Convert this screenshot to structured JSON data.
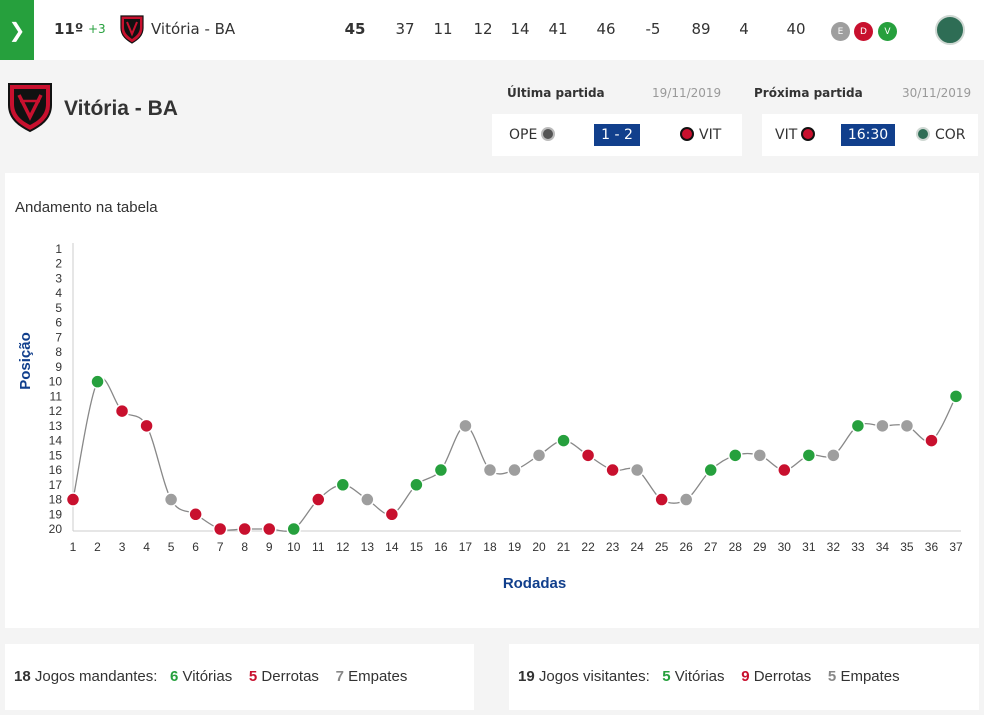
{
  "top_row": {
    "expand_icon": "chevron-right-icon",
    "position": "11º",
    "variation": "+3",
    "team": "Vitória - BA",
    "stats": [
      "45",
      "37",
      "11",
      "12",
      "14",
      "41",
      "46",
      "-5",
      "89",
      "4",
      "40"
    ],
    "form": [
      {
        "label": "E",
        "color": "#9e9e9e"
      },
      {
        "label": "D",
        "color": "#c8102e"
      },
      {
        "label": "V",
        "color": "#26a03d"
      }
    ]
  },
  "team_header": {
    "name": "Vitória - BA",
    "last_match": {
      "label": "Última partida",
      "date": "19/11/2019",
      "home": "OPE",
      "score": "1 - 2",
      "away": "VIT"
    },
    "next_match": {
      "label": "Próxima partida",
      "date": "30/11/2019",
      "home": "VIT",
      "time": "16:30",
      "away": "COR"
    }
  },
  "colors": {
    "win": "#26a03d",
    "loss": "#c8102e",
    "draw": "#9e9e9e",
    "axis_label": "#113f8c",
    "score_bg": "#113f8c"
  },
  "chart_data": {
    "type": "line",
    "title": "Andamento na tabela",
    "xlabel": "Rodadas",
    "ylabel": "Posição",
    "ylim": [
      1,
      20
    ],
    "y_inverted": true,
    "grid": false,
    "x": [
      1,
      2,
      3,
      4,
      5,
      6,
      7,
      8,
      9,
      10,
      11,
      12,
      13,
      14,
      15,
      16,
      17,
      18,
      19,
      20,
      21,
      22,
      23,
      24,
      25,
      26,
      27,
      28,
      29,
      30,
      31,
      32,
      33,
      34,
      35,
      36,
      37
    ],
    "series": [
      {
        "values": [
          18,
          10,
          12,
          13,
          18,
          19,
          20,
          20,
          20,
          20,
          18,
          17,
          18,
          19,
          17,
          16,
          13,
          16,
          16,
          15,
          14,
          15,
          16,
          16,
          18,
          18,
          16,
          15,
          15,
          16,
          15,
          15,
          13,
          13,
          13,
          14,
          11
        ],
        "results": [
          "D",
          "V",
          "D",
          "D",
          "E",
          "D",
          "D",
          "D",
          "D",
          "V",
          "D",
          "V",
          "E",
          "D",
          "V",
          "V",
          "E",
          "E",
          "E",
          "E",
          "V",
          "D",
          "D",
          "E",
          "D",
          "E",
          "V",
          "V",
          "E",
          "D",
          "V",
          "E",
          "V",
          "E",
          "E",
          "D",
          "V"
        ]
      }
    ]
  },
  "home_summary": {
    "games": "18",
    "games_label": "Jogos mandantes:",
    "wins": "6",
    "wins_label": "Vitórias",
    "losses": "5",
    "losses_label": "Derrotas",
    "draws": "7",
    "draws_label": "Empates"
  },
  "away_summary": {
    "games": "19",
    "games_label": "Jogos visitantes:",
    "wins": "5",
    "wins_label": "Vitórias",
    "losses": "9",
    "losses_label": "Derrotas",
    "draws": "5",
    "draws_label": "Empates"
  }
}
